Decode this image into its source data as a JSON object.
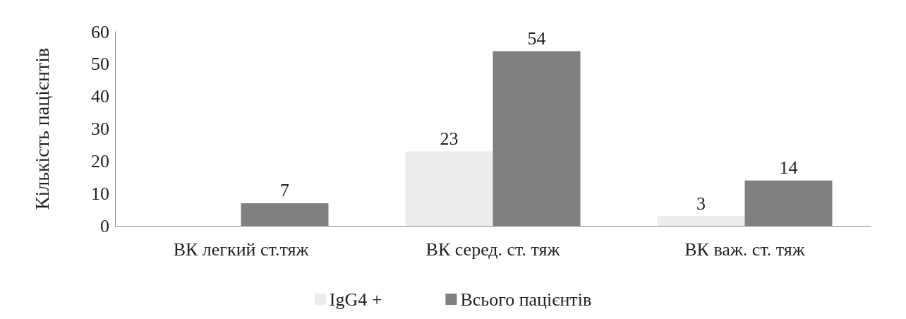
{
  "chart_data": {
    "type": "bar",
    "ylabel": "Кількість пацієнтів",
    "categories": [
      "ВК легкий ст.тяж",
      "ВК серед. ст. тяж",
      "ВК важ. ст. тяж"
    ],
    "series": [
      {
        "name": "IgG4 +",
        "color": "#ececec",
        "values": [
          null,
          23,
          3
        ]
      },
      {
        "name": "Всього пацієнтів",
        "color": "#7f7f7f",
        "values": [
          7,
          54,
          14
        ]
      }
    ],
    "ylim": [
      0,
      60
    ],
    "yticks": [
      0,
      10,
      20,
      30,
      40,
      50,
      60
    ],
    "grid": false,
    "legend": "bottom",
    "data_labels": true
  }
}
